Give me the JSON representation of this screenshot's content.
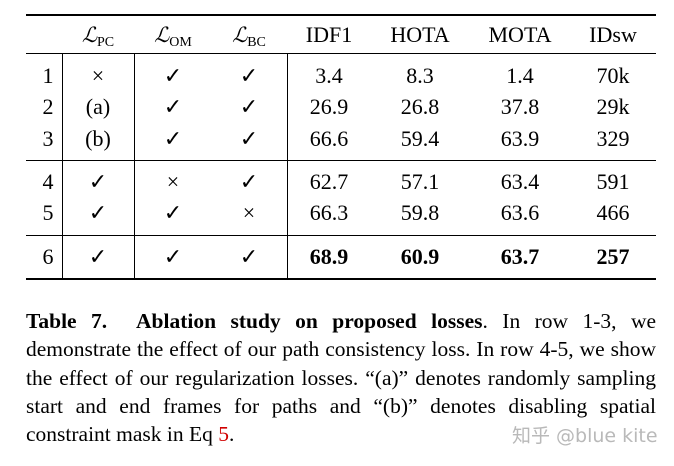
{
  "table": {
    "headers": [
      {
        "main": "",
        "sub": ""
      },
      {
        "main": "ℒ",
        "sub": "PC"
      },
      {
        "main": "ℒ",
        "sub": "OM"
      },
      {
        "main": "ℒ",
        "sub": "BC"
      },
      {
        "main": "IDF1",
        "sub": ""
      },
      {
        "main": "HOTA",
        "sub": ""
      },
      {
        "main": "MOTA",
        "sub": ""
      },
      {
        "main": "IDsw",
        "sub": ""
      }
    ],
    "rows": [
      [
        "1",
        "×",
        "✓",
        "✓",
        "3.4",
        "8.3",
        "1.4",
        "70k"
      ],
      [
        "2",
        "(a)",
        "✓",
        "✓",
        "26.9",
        "26.8",
        "37.8",
        "29k"
      ],
      [
        "3",
        "(b)",
        "✓",
        "✓",
        "66.6",
        "59.4",
        "63.9",
        "329"
      ],
      [
        "4",
        "✓",
        "×",
        "✓",
        "62.7",
        "57.1",
        "63.4",
        "591"
      ],
      [
        "5",
        "✓",
        "✓",
        "×",
        "66.3",
        "59.8",
        "63.6",
        "466"
      ],
      [
        "6",
        "✓",
        "✓",
        "✓",
        "68.9",
        "60.9",
        "63.7",
        "257"
      ]
    ]
  },
  "caption": {
    "label": "Table 7.",
    "title": "Ablation study on proposed losses",
    "text_1": ". In row 1-3, we demonstrate the effect of our path consistency loss. In row 4-5, we show the effect of our regularization losses. “(a)” denotes randomly sampling start and end frames for paths and “(b)” denotes disabling spatial constraint mask in Eq ",
    "eq_ref": "5",
    "text_2": "."
  },
  "watermark": "知乎 @blue kite"
}
